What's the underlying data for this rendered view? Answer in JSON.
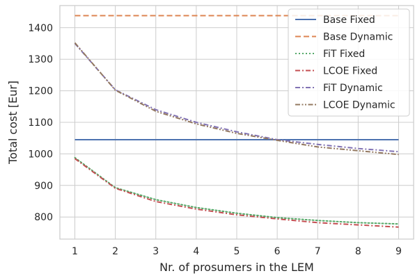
{
  "chart_data": {
    "type": "line",
    "title": "",
    "xlabel": "Nr. of prosumers in the LEM",
    "ylabel": "Total cost [Eur]",
    "x": [
      1,
      2,
      3,
      4,
      5,
      6,
      7,
      8,
      9
    ],
    "xlim": [
      0.63,
      9.37
    ],
    "ylim": [
      730,
      1470
    ],
    "xticks": [
      1,
      2,
      3,
      4,
      5,
      6,
      7,
      8,
      9
    ],
    "yticks": [
      800,
      900,
      1000,
      1100,
      1200,
      1300,
      1400
    ],
    "grid": true,
    "legend_position": "top-right",
    "series": [
      {
        "name": "Base Fixed",
        "color": "#4c72b0",
        "dash": "solid",
        "values": [
          1045,
          1045,
          1045,
          1045,
          1045,
          1045,
          1045,
          1045,
          1045
        ]
      },
      {
        "name": "Base Dynamic",
        "color": "#dd8452",
        "dash": "dashed",
        "values": [
          1438,
          1438,
          1438,
          1438,
          1438,
          1438,
          1438,
          1438,
          1438
        ]
      },
      {
        "name": "FiT Fixed",
        "color": "#55a868",
        "dash": "dotted",
        "values": [
          988,
          893,
          855,
          830,
          812,
          798,
          789,
          782,
          778
        ]
      },
      {
        "name": "LCOE Fixed",
        "color": "#c44e52",
        "dash": "dashdot",
        "values": [
          985,
          891,
          849,
          825,
          807,
          794,
          782,
          775,
          768
        ]
      },
      {
        "name": "FiT Dynamic",
        "color": "#8172b3",
        "dash": "dashdot",
        "values": [
          1350,
          1203,
          1140,
          1100,
          1070,
          1045,
          1030,
          1017,
          1007
        ]
      },
      {
        "name": "LCOE Dynamic",
        "color": "#937860",
        "dash": "dashdotdot",
        "values": [
          1352,
          1202,
          1135,
          1095,
          1065,
          1043,
          1022,
          1010,
          998
        ]
      }
    ]
  }
}
